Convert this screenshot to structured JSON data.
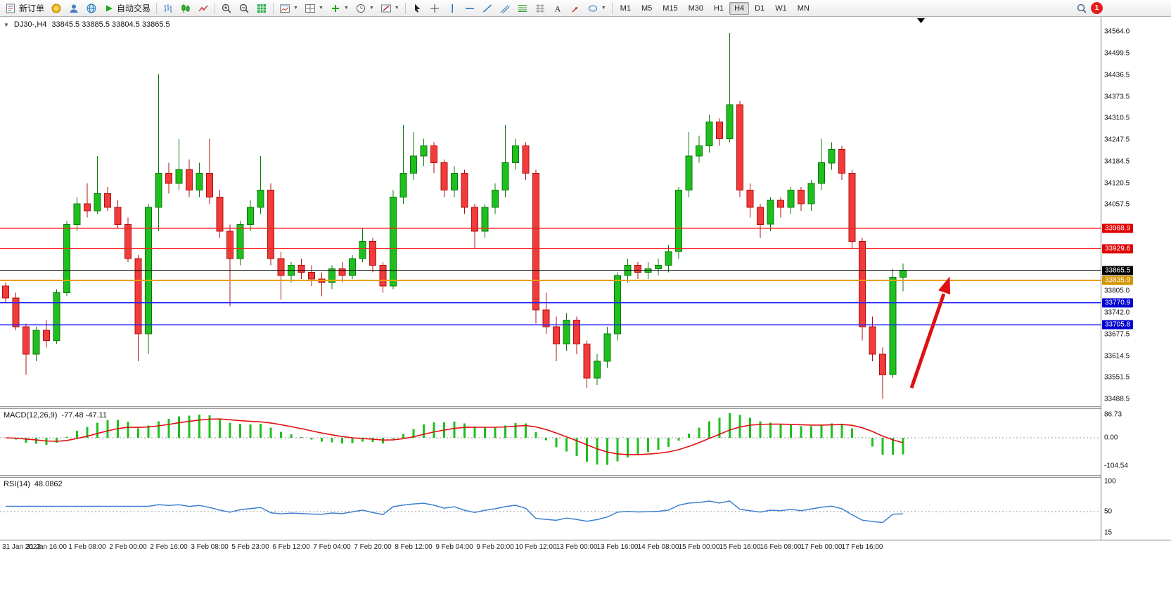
{
  "toolbar": {
    "new_order_label": "新订单",
    "auto_trading_label": "自动交易",
    "timeframes": [
      "M1",
      "M5",
      "M15",
      "M30",
      "H1",
      "H4",
      "D1",
      "W1",
      "MN"
    ],
    "active_timeframe": "H4",
    "notification_count": "1"
  },
  "chart": {
    "readout_symbol": "DJ30-,H4",
    "readout_ohlc": "33845.5 33885.5 33804.5 33865.5"
  },
  "chart_data": {
    "type": "candlestick",
    "symbol": "DJ30-",
    "timeframe": "H4",
    "current_ohlc": {
      "open": 33845.5,
      "high": 33885.5,
      "low": 33804.5,
      "close": 33865.5
    },
    "current_price": 33865.5,
    "current_price_label": "33865.5",
    "annotation_color": "#dd1111",
    "colors": {
      "up": "#1fbf1f",
      "up_stroke": "#0c7a0c",
      "down": "#f23b3b",
      "down_stroke": "#b01010"
    },
    "indicator_colors": {
      "macd_hist": "#1fbf1f",
      "macd_signal": "#e01010",
      "rsi": "#3e7fd0"
    },
    "y_ticks": [
      "34564.0",
      "34499.5",
      "34436.5",
      "34373.5",
      "34310.5",
      "34247.5",
      "34184.5",
      "34120.5",
      "34057.5",
      "33805.0",
      "33742.0",
      "33677.5",
      "33614.5",
      "33551.5",
      "33488.5"
    ],
    "price_lines": [
      {
        "price": 33988.9,
        "label": "33988.9",
        "color": "#ff2020",
        "badge": "#e00000",
        "width": 1.4
      },
      {
        "price": 33929.6,
        "label": "33929.6",
        "color": "#ff2020",
        "badge": "#e00000",
        "width": 1.4
      },
      {
        "price": 33835.9,
        "label": "33835.9",
        "color": "#e8a000",
        "badge": "#d49400",
        "width": 2
      },
      {
        "price": 33770.9,
        "label": "33770.9",
        "color": "#2020ff",
        "badge": "#0000d0",
        "width": 1.4
      },
      {
        "price": 33705.8,
        "label": "33705.8",
        "color": "#2020ff",
        "badge": "#0000d0",
        "width": 1.4
      }
    ],
    "x_labels": [
      "31 Jan 2023",
      "31 Jan 16:00",
      "1 Feb 08:00",
      "2 Feb 00:00",
      "2 Feb 16:00",
      "3 Feb 08:00",
      "5 Feb 23:00",
      "6 Feb 12:00",
      "7 Feb 04:00",
      "7 Feb 20:00",
      "8 Feb 12:00",
      "9 Feb 04:00",
      "9 Feb 20:00",
      "10 Feb 12:00",
      "13 Feb 00:00",
      "13 Feb 16:00",
      "14 Feb 08:00",
      "15 Feb 00:00",
      "15 Feb 16:00",
      "16 Feb 08:00",
      "17 Feb 00:00",
      "17 Feb 16:00"
    ],
    "candles": [
      [
        33820,
        33830,
        33770,
        33785
      ],
      [
        33785,
        33800,
        33690,
        33700
      ],
      [
        33700,
        33710,
        33560,
        33620
      ],
      [
        33620,
        33700,
        33600,
        33690
      ],
      [
        33690,
        33720,
        33640,
        33660
      ],
      [
        33660,
        33810,
        33650,
        33800
      ],
      [
        33800,
        34010,
        33790,
        34000
      ],
      [
        34000,
        34080,
        33980,
        34060
      ],
      [
        34060,
        34120,
        34020,
        34040
      ],
      [
        34040,
        34200,
        34030,
        34090
      ],
      [
        34090,
        34110,
        34040,
        34050
      ],
      [
        34050,
        34070,
        33990,
        34000
      ],
      [
        34000,
        34020,
        33890,
        33900
      ],
      [
        33900,
        33910,
        33600,
        33680
      ],
      [
        33680,
        34060,
        33620,
        34050
      ],
      [
        34050,
        34440,
        33980,
        34150
      ],
      [
        34150,
        34180,
        34090,
        34120
      ],
      [
        34120,
        34250,
        34100,
        34160
      ],
      [
        34160,
        34190,
        34080,
        34100
      ],
      [
        34100,
        34180,
        34080,
        34150
      ],
      [
        34150,
        34250,
        34060,
        34080
      ],
      [
        34080,
        34100,
        33960,
        33980
      ],
      [
        33980,
        34000,
        33760,
        33900
      ],
      [
        33900,
        34010,
        33880,
        34000
      ],
      [
        34000,
        34070,
        33980,
        34050
      ],
      [
        34050,
        34200,
        34030,
        34100
      ],
      [
        34100,
        34120,
        33880,
        33900
      ],
      [
        33900,
        33920,
        33780,
        33850
      ],
      [
        33850,
        33890,
        33830,
        33880
      ],
      [
        33880,
        33900,
        33840,
        33860
      ],
      [
        33860,
        33880,
        33820,
        33840
      ],
      [
        33840,
        33860,
        33790,
        33830
      ],
      [
        33830,
        33880,
        33810,
        33870
      ],
      [
        33870,
        33890,
        33830,
        33850
      ],
      [
        33850,
        33910,
        33840,
        33900
      ],
      [
        33900,
        33990,
        33890,
        33950
      ],
      [
        33950,
        33960,
        33860,
        33880
      ],
      [
        33880,
        33890,
        33800,
        33820
      ],
      [
        33820,
        34100,
        33810,
        34080
      ],
      [
        34080,
        34290,
        34060,
        34150
      ],
      [
        34150,
        34270,
        34130,
        34200
      ],
      [
        34200,
        34250,
        34170,
        34230
      ],
      [
        34230,
        34240,
        34150,
        34180
      ],
      [
        34180,
        34190,
        34080,
        34100
      ],
      [
        34100,
        34170,
        34080,
        34150
      ],
      [
        34150,
        34160,
        34030,
        34050
      ],
      [
        34050,
        34060,
        33930,
        33980
      ],
      [
        33980,
        34060,
        33960,
        34050
      ],
      [
        34050,
        34120,
        34030,
        34100
      ],
      [
        34100,
        34290,
        34080,
        34180
      ],
      [
        34180,
        34250,
        34160,
        34230
      ],
      [
        34230,
        34240,
        34130,
        34150
      ],
      [
        34150,
        34160,
        33710,
        33750
      ],
      [
        33750,
        33800,
        33680,
        33700
      ],
      [
        33700,
        33730,
        33600,
        33650
      ],
      [
        33650,
        33740,
        33630,
        33720
      ],
      [
        33720,
        33730,
        33620,
        33650
      ],
      [
        33650,
        33660,
        33520,
        33550
      ],
      [
        33550,
        33620,
        33530,
        33600
      ],
      [
        33600,
        33700,
        33580,
        33680
      ],
      [
        33680,
        33860,
        33660,
        33850
      ],
      [
        33850,
        33900,
        33830,
        33880
      ],
      [
        33880,
        33890,
        33840,
        33860
      ],
      [
        33860,
        33890,
        33840,
        33870
      ],
      [
        33870,
        33900,
        33850,
        33880
      ],
      [
        33880,
        33940,
        33860,
        33920
      ],
      [
        33920,
        34110,
        33900,
        34100
      ],
      [
        34100,
        34270,
        34080,
        34200
      ],
      [
        34200,
        34260,
        34180,
        34230
      ],
      [
        34230,
        34320,
        34210,
        34300
      ],
      [
        34300,
        34310,
        34230,
        34250
      ],
      [
        34250,
        34560,
        34240,
        34350
      ],
      [
        34350,
        34360,
        34080,
        34100
      ],
      [
        34100,
        34120,
        34020,
        34050
      ],
      [
        34050,
        34060,
        33960,
        34000
      ],
      [
        34000,
        34080,
        33980,
        34070
      ],
      [
        34070,
        34080,
        34020,
        34050
      ],
      [
        34050,
        34110,
        34030,
        34100
      ],
      [
        34100,
        34110,
        34040,
        34060
      ],
      [
        34060,
        34130,
        34040,
        34120
      ],
      [
        34120,
        34250,
        34100,
        34180
      ],
      [
        34180,
        34240,
        34160,
        34220
      ],
      [
        34220,
        34230,
        34130,
        34150
      ],
      [
        34150,
        34160,
        33930,
        33950
      ],
      [
        33950,
        33960,
        33660,
        33700
      ],
      [
        33700,
        33730,
        33600,
        33620
      ],
      [
        33620,
        33640,
        33490,
        33560
      ],
      [
        33560,
        33870,
        33550,
        33845
      ],
      [
        33845.5,
        33885.5,
        33804.5,
        33865.5
      ]
    ],
    "indicators": {
      "macd": {
        "label": "MACD(12,26,9)",
        "values": "-77.48 -47.11",
        "params": [
          12,
          26,
          9
        ],
        "scale": [
          "86.73",
          "0.00",
          "-104.54"
        ]
      },
      "rsi": {
        "label": "RSI(14)",
        "value": "48.0862",
        "period": 14,
        "scale": [
          "100",
          "50",
          "15"
        ]
      }
    }
  }
}
